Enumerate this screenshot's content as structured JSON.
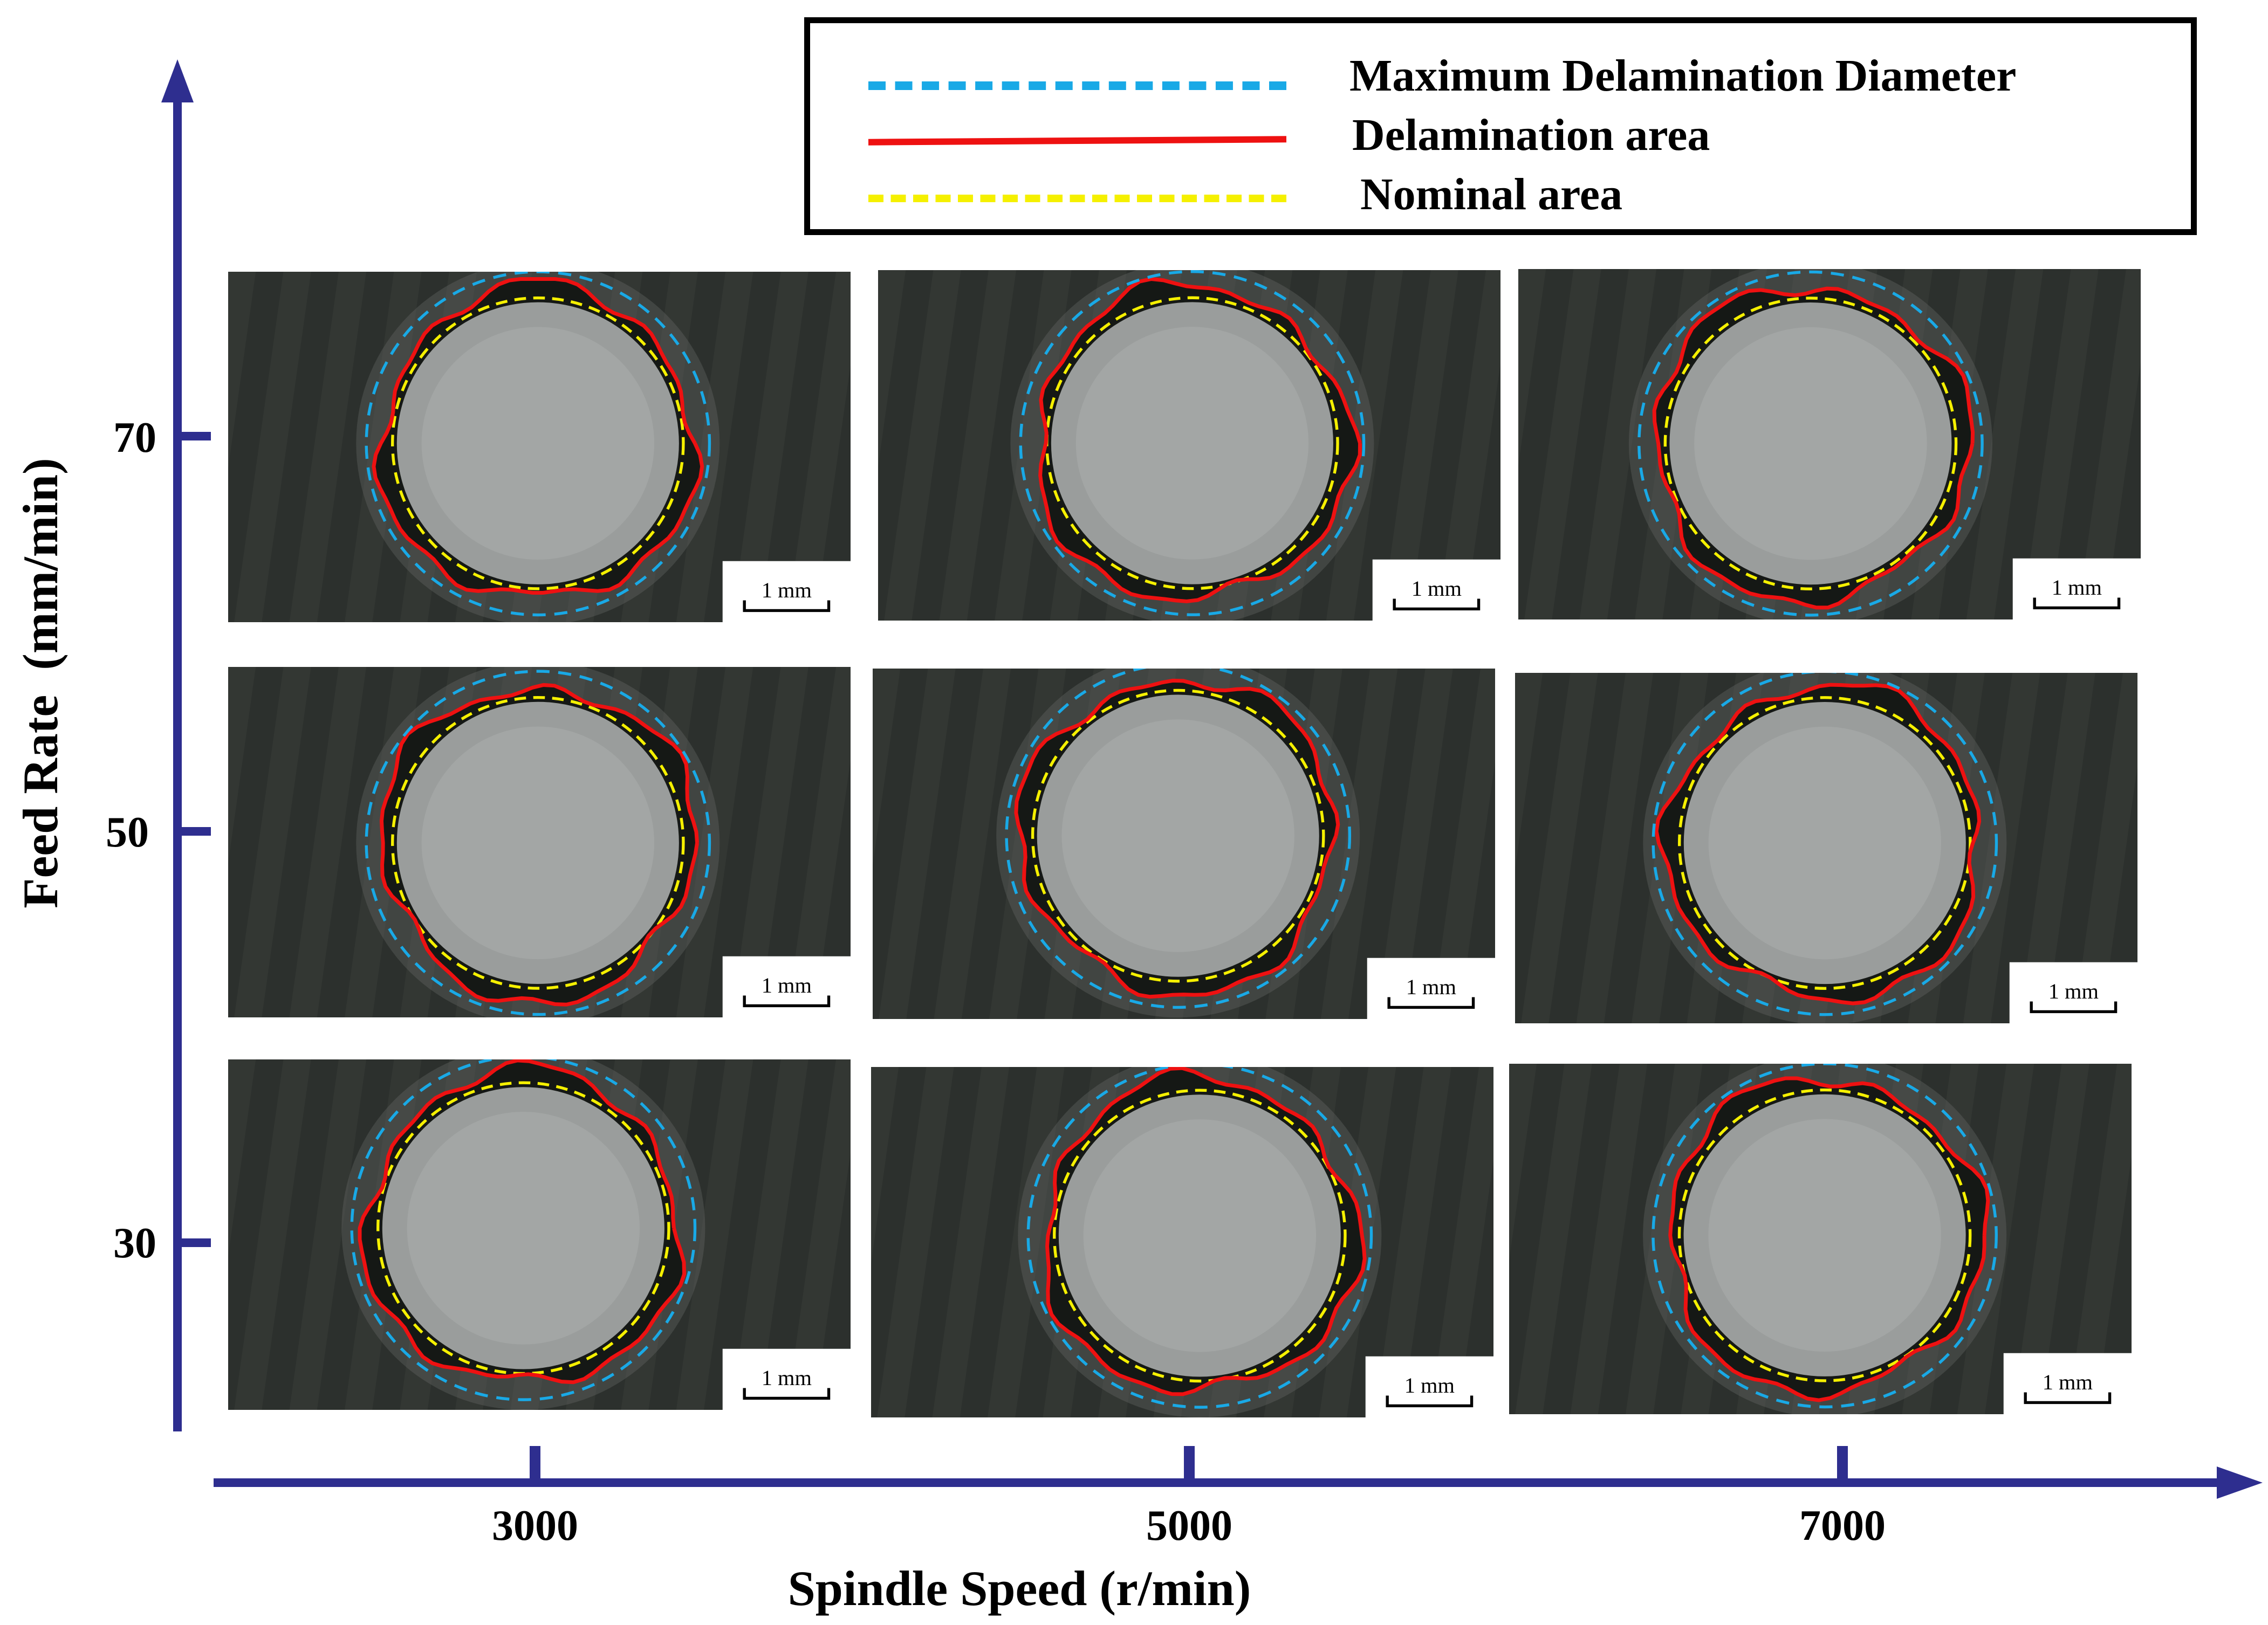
{
  "legend": {
    "items": [
      {
        "label": "Maximum Delamination Diameter",
        "color": "#19a9e6",
        "style": "dashed"
      },
      {
        "label": "Delamination area",
        "color": "#ee1111",
        "style": "solid"
      },
      {
        "label": "Nominal area",
        "color": "#f5f000",
        "style": "dashed"
      }
    ]
  },
  "axes": {
    "y_title": "Feed Rate  (mm/min)",
    "x_title": "Spindle Speed (r/min)",
    "y_ticks": [
      "70",
      "50",
      "30"
    ],
    "x_ticks": [
      "3000",
      "5000",
      "7000"
    ],
    "axis_color": "#2e2e8f"
  },
  "scale_bar_label": "1 mm",
  "chart_data": {
    "type": "image-grid",
    "x_label": "Spindle Speed (r/min)",
    "y_label": "Feed Rate  (mm/min)",
    "x_values": [
      3000,
      5000,
      7000
    ],
    "y_values": [
      70,
      50,
      30
    ],
    "panels": [
      {
        "feed_rate": 70,
        "spindle_speed": 3000
      },
      {
        "feed_rate": 70,
        "spindle_speed": 5000
      },
      {
        "feed_rate": 70,
        "spindle_speed": 7000
      },
      {
        "feed_rate": 50,
        "spindle_speed": 3000
      },
      {
        "feed_rate": 50,
        "spindle_speed": 5000
      },
      {
        "feed_rate": 50,
        "spindle_speed": 7000
      },
      {
        "feed_rate": 30,
        "spindle_speed": 3000
      },
      {
        "feed_rate": 30,
        "spindle_speed": 5000
      },
      {
        "feed_rate": 30,
        "spindle_speed": 7000
      }
    ]
  }
}
